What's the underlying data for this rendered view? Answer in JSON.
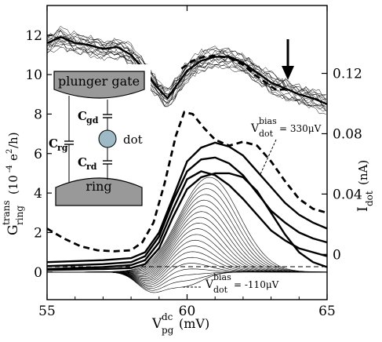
{
  "chart_data": {
    "type": "line",
    "xlabel": {
      "main": "V",
      "sup": "dc",
      "sub": "pg",
      "unit": "(mV)"
    },
    "ylabel_left": {
      "main": "G",
      "sup": "trans",
      "sub": "ring",
      "unit": "(10",
      "exp": "-4",
      "unit2": "e",
      "exp2": "2",
      "unit3": "/h)"
    },
    "ylabel_right": {
      "main": "I",
      "sub": "dot",
      "unit": "(nA)"
    },
    "xlim": [
      55,
      65
    ],
    "ylim_left": [
      -1.4,
      13.5
    ],
    "ylim_right": [
      -0.03,
      0.165
    ],
    "x_ticks": [
      "55",
      "60",
      "65"
    ],
    "y_ticks_left": [
      "0",
      "2",
      "4",
      "6",
      "8",
      "10",
      "12"
    ],
    "y_ticks_right": [
      "0",
      "0.04",
      "0.08",
      "0.12"
    ],
    "grid": false,
    "annotations": {
      "bias_high": {
        "main": "V",
        "sup": "bias",
        "sub": "dot",
        "value": "= 330μV"
      },
      "bias_low": {
        "main": "V",
        "sup": "bias",
        "sub": "dot",
        "value": "= -110μV"
      },
      "arrow_x": 63.4
    },
    "inset": {
      "plunger_label": "plunger gate",
      "ring_label": "ring",
      "dot_label": "dot",
      "cgd": {
        "main": "C",
        "sub": "gd"
      },
      "crd": {
        "main": "C",
        "sub": "rd"
      },
      "crg": {
        "main": "C",
        "sub": "rg"
      },
      "dot_color": "#9dbac6",
      "box_color": "#999999"
    },
    "series": [
      {
        "axis": "left",
        "style": "dashed",
        "x": [
          55,
          55.6,
          56.2,
          56.8,
          57.4,
          58,
          58.4,
          58.8,
          59.2,
          59.6,
          59.9,
          60.2,
          60.6,
          61,
          61.5,
          62,
          62.5,
          63,
          63.5,
          64,
          64.5,
          65
        ],
        "y": [
          2.2,
          1.7,
          1.3,
          1.1,
          1.05,
          1.1,
          1.5,
          2.5,
          4.5,
          6.9,
          8.1,
          8.0,
          7.3,
          6.7,
          6.4,
          6.6,
          6.4,
          5.6,
          4.6,
          3.7,
          3.2,
          3.0
        ]
      },
      {
        "axis": "left",
        "style": "dashed",
        "x": [
          59.8,
          60.2,
          60.6,
          61,
          61.5,
          62,
          62.4,
          62.8,
          63.2,
          63.6
        ],
        "y": [
          10.3,
          10.7,
          10.9,
          10.95,
          10.85,
          10.5,
          10.0,
          9.6,
          9.2,
          9.3
        ]
      },
      {
        "axis": "left",
        "style": "thick",
        "x": [
          55,
          55.5,
          56,
          56.5,
          57,
          57.5,
          58,
          58.5,
          58.9,
          59.3,
          59.6,
          60,
          60.5,
          61,
          61.5,
          62,
          62.5,
          63,
          63.5,
          64,
          64.5,
          65
        ],
        "y": [
          11.6,
          11.9,
          11.6,
          11.5,
          11.3,
          11.4,
          11.0,
          10.2,
          9.4,
          8.8,
          9.4,
          10.2,
          10.7,
          10.9,
          10.9,
          10.6,
          10.1,
          9.6,
          9.3,
          9.0,
          8.8,
          8.5
        ]
      },
      {
        "axis": "left",
        "style": "thick",
        "x": [
          55,
          56,
          57,
          58,
          58.5,
          59,
          59.5,
          60,
          60.5,
          61,
          61.5,
          62,
          62.5,
          63,
          63.5,
          64,
          64.5,
          65
        ],
        "y": [
          0.5,
          0.55,
          0.6,
          0.7,
          1.0,
          2.0,
          3.8,
          5.6,
          6.3,
          6.55,
          6.35,
          5.9,
          5.1,
          4.3,
          3.5,
          2.9,
          2.5,
          2.2
        ]
      },
      {
        "axis": "left",
        "style": "thick",
        "x": [
          55,
          56,
          57,
          58,
          58.5,
          59,
          59.5,
          60,
          60.5,
          61,
          61.5,
          62,
          62.5,
          63,
          63.5,
          64,
          64.5,
          65
        ],
        "y": [
          0.3,
          0.35,
          0.4,
          0.5,
          0.8,
          1.8,
          3.6,
          5.1,
          5.7,
          5.8,
          5.5,
          4.9,
          4.0,
          3.1,
          2.5,
          2.0,
          1.7,
          1.5
        ]
      },
      {
        "axis": "left",
        "style": "thick",
        "x": [
          55,
          56,
          57,
          58,
          58.5,
          59,
          59.5,
          60,
          60.5,
          61,
          61.5,
          62,
          62.5,
          63,
          63.5,
          64,
          64.5,
          65
        ],
        "y": [
          0.15,
          0.2,
          0.25,
          0.35,
          0.6,
          1.5,
          3.2,
          4.7,
          5.1,
          4.9,
          4.4,
          3.7,
          2.9,
          2.1,
          1.6,
          1.2,
          1.0,
          0.8
        ]
      },
      {
        "axis": "left",
        "style": "thick",
        "x": [
          55,
          57,
          58,
          58.5,
          59,
          59.5,
          60,
          60.5,
          61,
          61.5,
          62,
          62.5,
          63,
          63.5,
          64,
          64.5,
          65
        ],
        "y": [
          0.1,
          0.15,
          0.2,
          0.4,
          1.2,
          2.8,
          4.2,
          4.8,
          5.0,
          5.0,
          4.8,
          4.1,
          3.0,
          1.9,
          1.0,
          0.5,
          0.25
        ]
      }
    ]
  }
}
